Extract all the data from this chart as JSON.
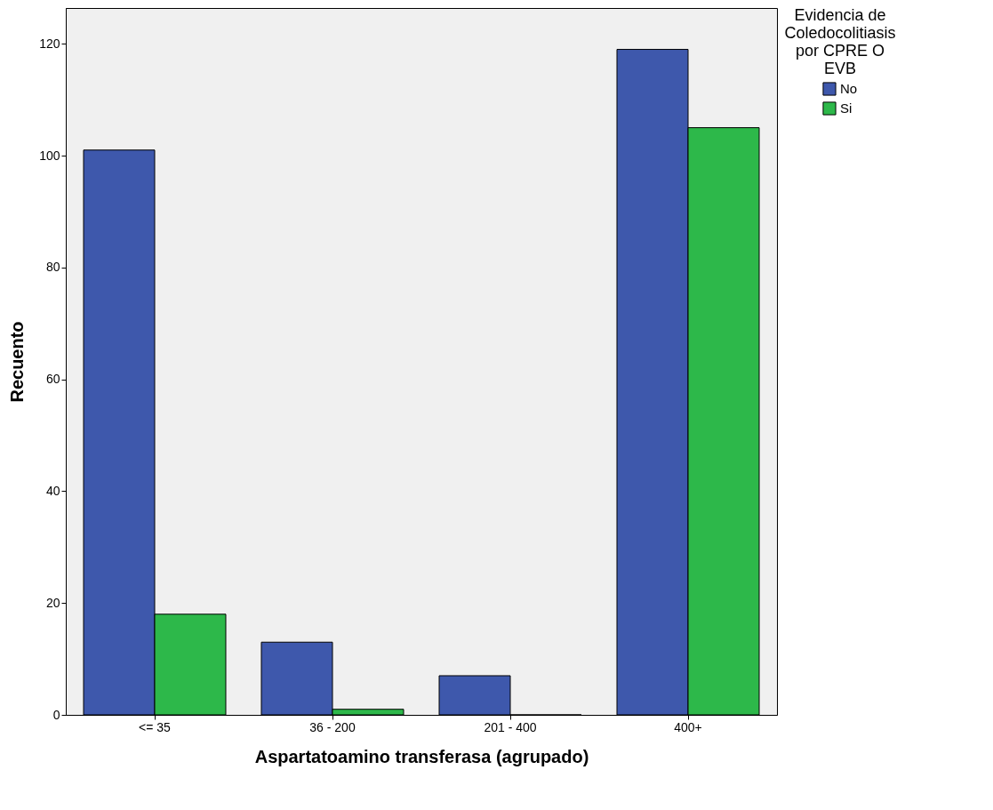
{
  "chart_data": {
    "type": "bar",
    "xlabel": "Aspartatoamino transferasa (agrupado)",
    "ylabel": "Recuento",
    "legend_title": "Evidencia de Coledocolitiasis por CPRE O EVB",
    "categories": [
      "<= 35",
      "36 - 200",
      "201 - 400",
      "400+"
    ],
    "series": [
      {
        "name": "No",
        "color": "#3e58ac",
        "values": [
          101,
          13,
          7,
          119
        ]
      },
      {
        "name": "Si",
        "color": "#2db84a",
        "values": [
          18,
          1,
          0,
          105
        ]
      }
    ],
    "ylim": [
      0,
      126.4
    ],
    "yticks": [
      0,
      20,
      40,
      60,
      80,
      100,
      120
    ],
    "grid": false,
    "legend": "top right"
  }
}
